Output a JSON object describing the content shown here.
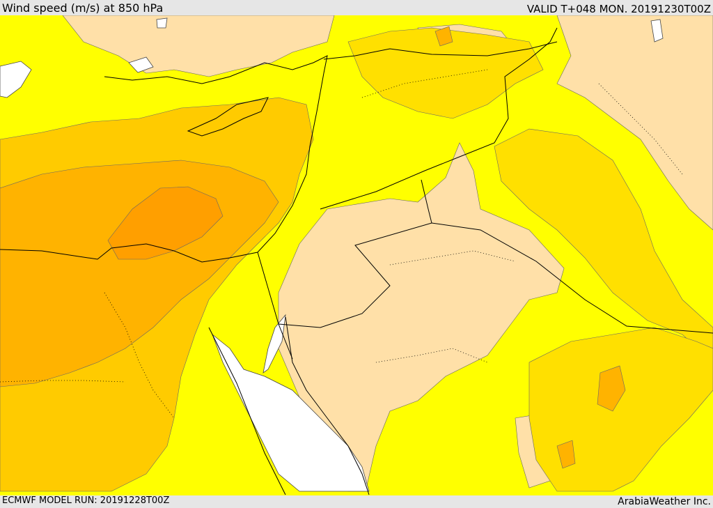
{
  "header": {
    "title": "Wind speed (m/s) at 850 hPa",
    "valid_time": "VALID T+048 MON. 20191230T00Z"
  },
  "footer": {
    "model_run": "ECMWF MODEL RUN: 20191228T00Z",
    "credit": "ArabiaWeather Inc."
  },
  "map": {
    "colors": {
      "sea": "#ffffff",
      "light": "#ffe0a8",
      "yellow": "#ffff00",
      "gold": "#ffe000",
      "amber": "#ffcb00",
      "orange": "#ffb300",
      "dark_orange": "#ff9f00",
      "border": "#000000"
    }
  }
}
